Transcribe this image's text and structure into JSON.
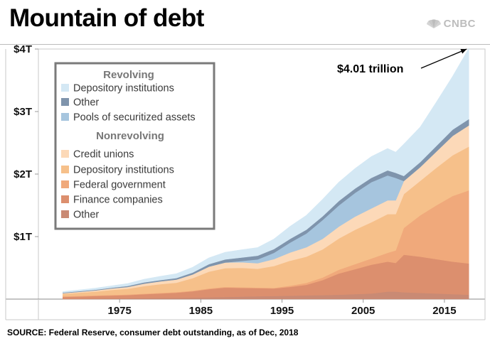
{
  "header": {
    "title": "Mountain of debt",
    "brand": "CNBC"
  },
  "footer": {
    "source": "SOURCE: Federal Reserve, consumer debt outstanding, as of Dec, 2018"
  },
  "chart_data": {
    "type": "area",
    "stacked": true,
    "title": "Mountain of debt",
    "xlabel": "",
    "ylabel": "",
    "unit": "trillions of dollars",
    "xlim": [
      1965,
      2020
    ],
    "ylim": [
      0,
      4
    ],
    "x_ticks": [
      1975,
      1985,
      1995,
      2005,
      2015
    ],
    "x_tick_labels": [
      "1975",
      "1985",
      "1995",
      "2005",
      "2015"
    ],
    "y_ticks": [
      1,
      2,
      3,
      4
    ],
    "y_tick_labels": [
      "$1T",
      "$2T",
      "$3T",
      "$4T"
    ],
    "grid": false,
    "legend_position": "top-left",
    "legend_groups": [
      {
        "heading": "Revolving",
        "items": [
          "Depository institutions",
          "Other",
          "Pools of securitized assets"
        ]
      },
      {
        "heading": "Nonrevolving",
        "items": [
          "Credit unions",
          "Depository institutions",
          "Federal government",
          "Finance companies",
          "Other"
        ]
      }
    ],
    "annotation": {
      "text": "$4.01 trillion",
      "x": 2018,
      "y": 4.01
    },
    "x": [
      1968,
      1970,
      1972,
      1974,
      1976,
      1978,
      1980,
      1982,
      1984,
      1986,
      1988,
      1990,
      1992,
      1994,
      1996,
      1998,
      2000,
      2002,
      2004,
      2006,
      2008,
      2009,
      2010,
      2012,
      2014,
      2016,
      2018
    ],
    "series": [
      {
        "name": "Other (nonrevolving)",
        "group": "Nonrevolving",
        "color": "#c98a74",
        "values": [
          0.005,
          0.007,
          0.01,
          0.012,
          0.015,
          0.018,
          0.02,
          0.022,
          0.025,
          0.03,
          0.035,
          0.04,
          0.045,
          0.05,
          0.055,
          0.06,
          0.065,
          0.07,
          0.08,
          0.09,
          0.12,
          0.12,
          0.11,
          0.1,
          0.09,
          0.08,
          0.07
        ]
      },
      {
        "name": "Finance companies",
        "group": "Nonrevolving",
        "color": "#dc8f6e",
        "values": [
          0.03,
          0.035,
          0.04,
          0.045,
          0.05,
          0.06,
          0.07,
          0.08,
          0.1,
          0.13,
          0.15,
          0.14,
          0.13,
          0.12,
          0.14,
          0.17,
          0.24,
          0.34,
          0.4,
          0.46,
          0.48,
          0.46,
          0.6,
          0.58,
          0.55,
          0.52,
          0.5
        ]
      },
      {
        "name": "Federal government",
        "group": "Nonrevolving",
        "color": "#f0a97b",
        "values": [
          0.01,
          0.01,
          0.01,
          0.01,
          0.01,
          0.01,
          0.01,
          0.01,
          0.01,
          0.01,
          0.01,
          0.01,
          0.01,
          0.01,
          0.02,
          0.03,
          0.04,
          0.06,
          0.08,
          0.1,
          0.14,
          0.2,
          0.43,
          0.66,
          0.86,
          1.05,
          1.17
        ]
      },
      {
        "name": "Depository institutions (nonrevolving)",
        "group": "Nonrevolving",
        "color": "#f6c08a",
        "values": [
          0.04,
          0.05,
          0.06,
          0.08,
          0.09,
          0.12,
          0.14,
          0.15,
          0.2,
          0.27,
          0.3,
          0.31,
          0.3,
          0.35,
          0.4,
          0.42,
          0.45,
          0.5,
          0.55,
          0.58,
          0.62,
          0.58,
          0.54,
          0.55,
          0.6,
          0.65,
          0.7
        ]
      },
      {
        "name": "Credit unions",
        "group": "Nonrevolving",
        "color": "#fcd9b8",
        "values": [
          0.01,
          0.015,
          0.02,
          0.025,
          0.03,
          0.04,
          0.045,
          0.05,
          0.06,
          0.08,
          0.09,
          0.09,
          0.09,
          0.11,
          0.13,
          0.15,
          0.17,
          0.19,
          0.21,
          0.22,
          0.22,
          0.22,
          0.21,
          0.22,
          0.26,
          0.31,
          0.34
        ]
      },
      {
        "name": "Pools of securitized assets",
        "group": "Revolving",
        "color": "#a6c5de",
        "values": [
          0,
          0,
          0,
          0,
          0,
          0,
          0,
          0,
          0,
          0,
          0,
          0.02,
          0.06,
          0.1,
          0.16,
          0.22,
          0.3,
          0.34,
          0.38,
          0.42,
          0.4,
          0.36,
          0,
          0,
          0,
          0,
          0
        ]
      },
      {
        "name": "Other (revolving)",
        "group": "Revolving",
        "color": "#7f94ac",
        "values": [
          0.01,
          0.01,
          0.01,
          0.01,
          0.015,
          0.02,
          0.02,
          0.025,
          0.03,
          0.04,
          0.05,
          0.055,
          0.06,
          0.06,
          0.06,
          0.06,
          0.06,
          0.07,
          0.07,
          0.07,
          0.08,
          0.08,
          0.08,
          0.08,
          0.09,
          0.1,
          0.1
        ]
      },
      {
        "name": "Depository institutions (revolving)",
        "group": "Revolving",
        "color": "#d4e8f4",
        "values": [
          0.015,
          0.02,
          0.025,
          0.03,
          0.04,
          0.05,
          0.06,
          0.07,
          0.085,
          0.1,
          0.115,
          0.125,
          0.13,
          0.16,
          0.2,
          0.23,
          0.27,
          0.3,
          0.32,
          0.34,
          0.35,
          0.33,
          0.51,
          0.56,
          0.7,
          0.85,
          1.13
        ]
      }
    ]
  }
}
